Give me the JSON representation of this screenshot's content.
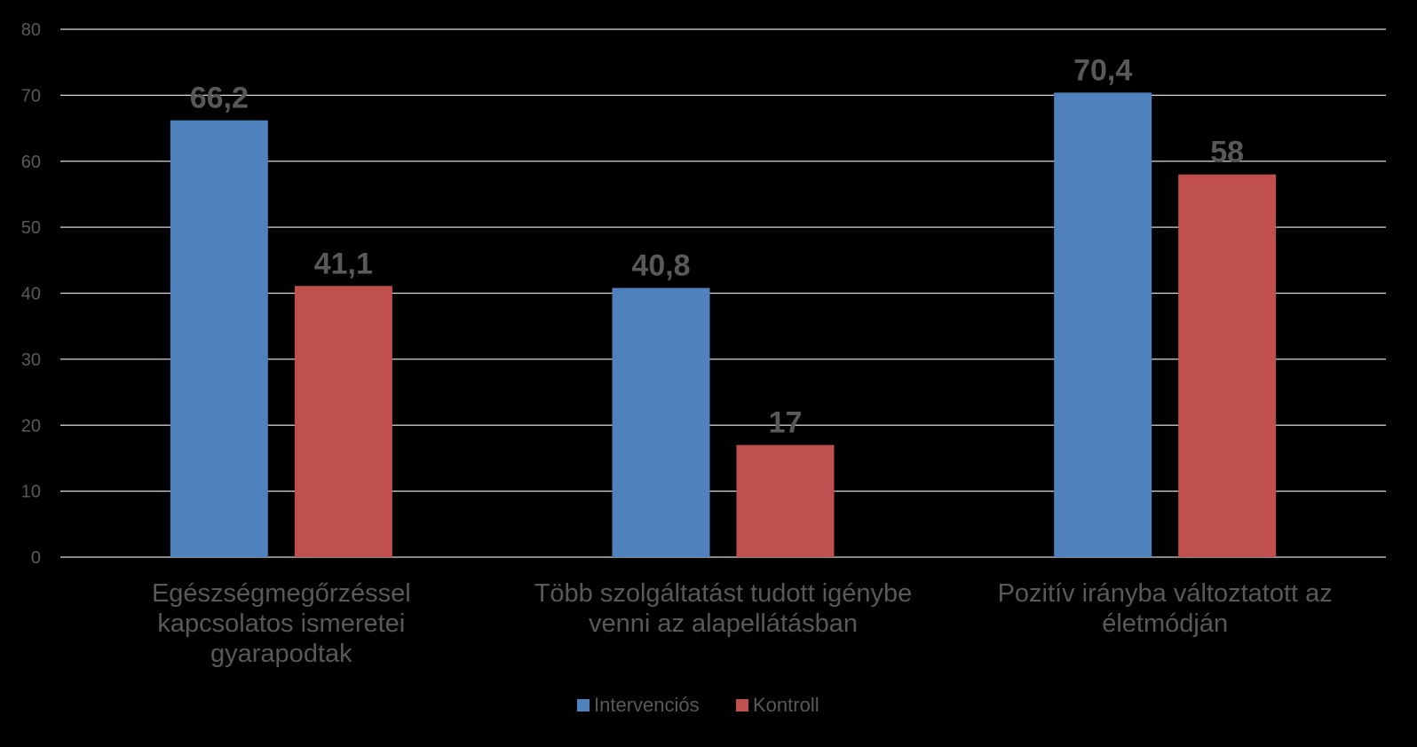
{
  "chart_data": {
    "type": "bar",
    "categories": [
      [
        "Egészségmegőrzéssel",
        "kapcsolatos ismeretei",
        "gyarapodtak"
      ],
      [
        "Több szolgáltatást tudott igénybe",
        "venni az alapellátásban"
      ],
      [
        "Pozitív irányba változtatott az",
        "életmódján"
      ]
    ],
    "series": [
      {
        "name": "Intervenciós",
        "color": "#4F81BD",
        "values": [
          66.2,
          40.8,
          70.4
        ],
        "labels": [
          "66,2",
          "40,8",
          "70,4"
        ]
      },
      {
        "name": "Kontroll",
        "color": "#C0504D",
        "values": [
          41.1,
          17,
          58
        ],
        "labels": [
          "41,1",
          "17",
          "58"
        ]
      }
    ],
    "ylim": [
      0,
      80
    ],
    "yticks": [
      0,
      10,
      20,
      30,
      40,
      50,
      60,
      70,
      80
    ],
    "grid": true,
    "legend": "bottom",
    "title": "",
    "xlabel": "",
    "ylabel": ""
  }
}
